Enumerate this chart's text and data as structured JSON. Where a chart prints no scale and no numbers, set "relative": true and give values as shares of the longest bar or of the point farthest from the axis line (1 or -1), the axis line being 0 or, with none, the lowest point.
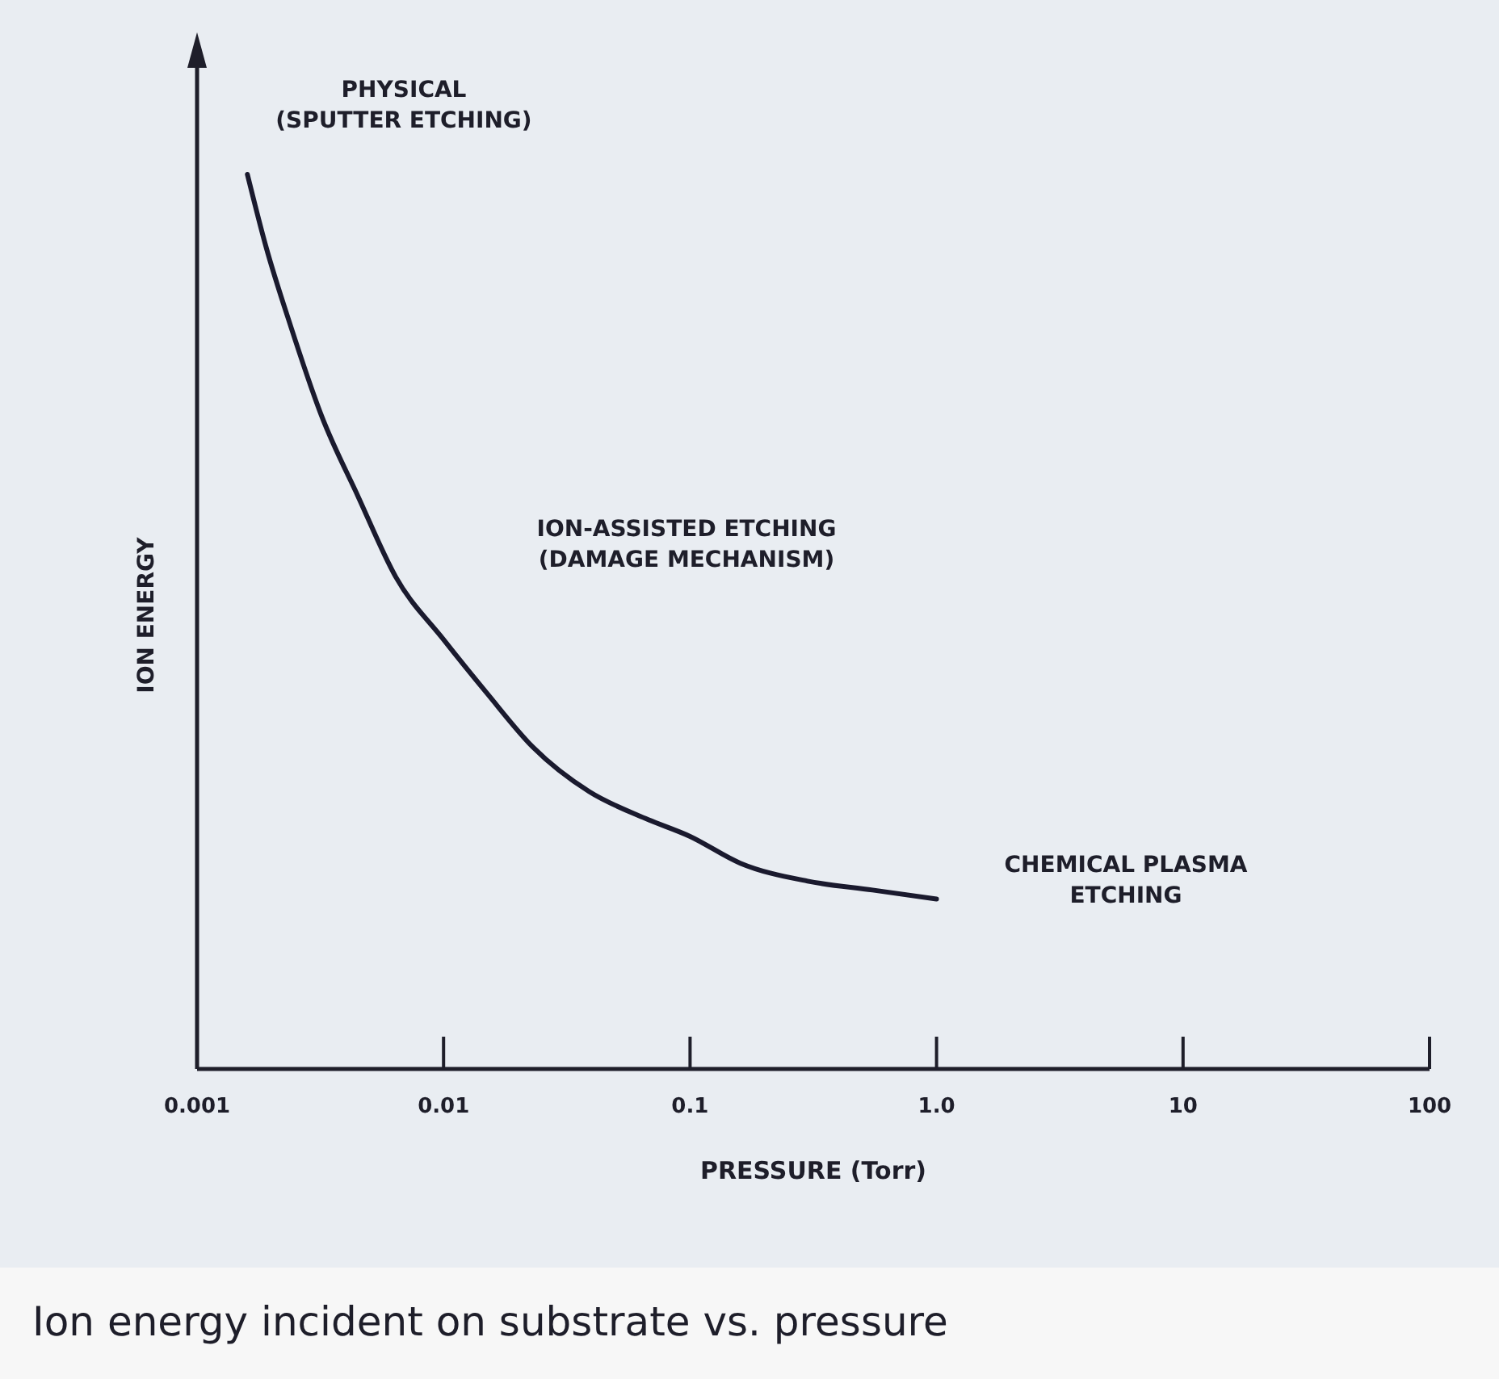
{
  "chart_data": {
    "type": "line",
    "title": "Ion energy incident on substrate vs. pressure",
    "xlabel": "PRESSURE (Torr)",
    "ylabel": "ION ENERGY",
    "log": "x",
    "relative": true,
    "color": "#1a1a2e",
    "marker": "none",
    "line_style": "solid",
    "grid": false,
    "xlim": [
      0.001,
      100
    ],
    "xticks": [
      {
        "value": 0.001,
        "label": "0.001"
      },
      {
        "value": 0.01,
        "label": "0.01"
      },
      {
        "value": 0.1,
        "label": "0.1"
      },
      {
        "value": 1,
        "label": "1.0"
      },
      {
        "value": 10,
        "label": "10"
      },
      {
        "value": 100,
        "label": "100"
      }
    ],
    "x": [
      0.0016,
      0.0019,
      0.0024,
      0.0032,
      0.0045,
      0.0064,
      0.01,
      0.015,
      0.023,
      0.039,
      0.066,
      0.1,
      0.16,
      0.3,
      0.55,
      1
    ],
    "values": [
      1,
      0.92,
      0.83,
      0.73,
      0.64,
      0.55,
      0.48,
      0.42,
      0.36,
      0.31,
      0.28,
      0.26,
      0.23,
      0.21,
      0.2,
      0.19
    ],
    "annotations": [
      "PHYSICAL\n(SPUTTER ETCHING)",
      "ION-ASSISTED ETCHING\n(DAMAGE MECHANISM)",
      "CHEMICAL PLASMA\nETCHING"
    ]
  }
}
